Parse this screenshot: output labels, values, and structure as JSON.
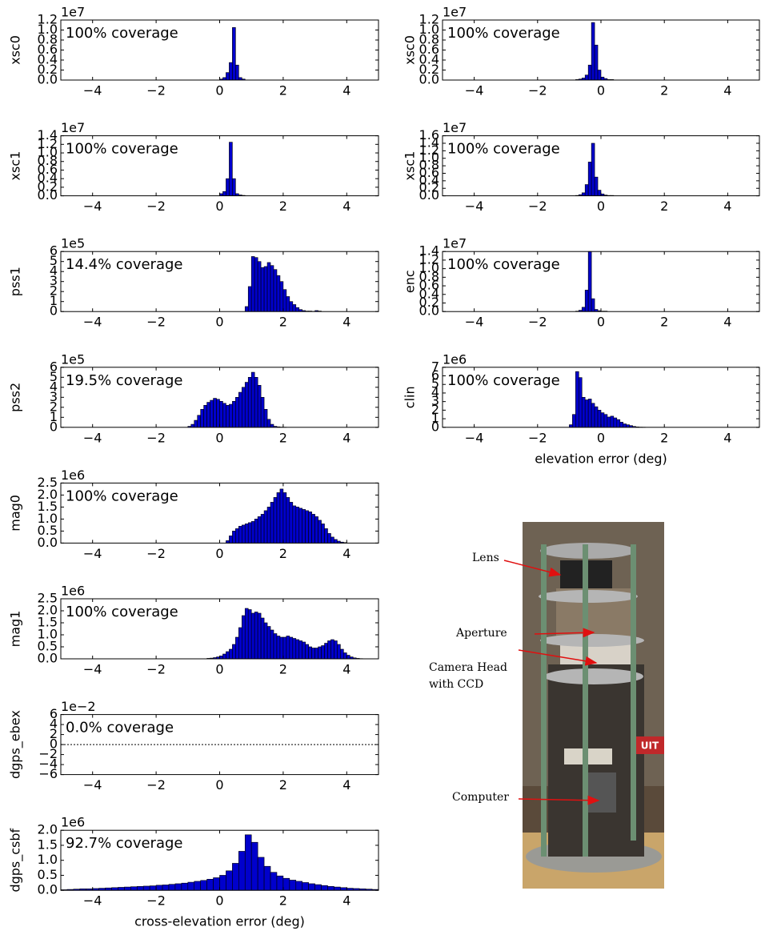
{
  "chart_data": [
    {
      "type": "histogram",
      "ylabel": "xsc0",
      "offset_label": "1e7",
      "annotation": "100% coverage",
      "color": "#0000cc",
      "bins": [
        0.0,
        0.1,
        0.2,
        0.3,
        0.4,
        0.5,
        0.6,
        0.7,
        0.8
      ],
      "counts": [
        0.02,
        0.05,
        0.15,
        0.35,
        1.05,
        0.3,
        0.05,
        0.02
      ],
      "xlim": [
        -5,
        5
      ],
      "xticks": [
        {
          "value": -4,
          "label": "−4"
        },
        {
          "value": -2,
          "label": "−2"
        },
        0,
        2,
        4
      ],
      "ylim": [
        0,
        1.2
      ],
      "yticks": [
        {
          "value": 0,
          "label": "0.0"
        },
        0.2,
        0.4,
        0.6,
        0.8,
        {
          "value": 1,
          "label": "1.0"
        },
        1.2
      ]
    },
    {
      "type": "histogram",
      "ylabel": "xsc1",
      "offset_label": "1e7",
      "annotation": "100% coverage",
      "color": "#0000cc",
      "bins": [
        0.0,
        0.1,
        0.2,
        0.3,
        0.4,
        0.5,
        0.6,
        0.7,
        0.8
      ],
      "counts": [
        0.05,
        0.1,
        0.4,
        1.25,
        0.4,
        0.05,
        0.02,
        0.01
      ],
      "xlim": [
        -5,
        5
      ],
      "xticks": [
        {
          "value": -4,
          "label": "−4"
        },
        {
          "value": -2,
          "label": "−2"
        },
        0,
        2,
        4
      ],
      "ylim": [
        0,
        1.4
      ],
      "yticks": [
        {
          "value": 0,
          "label": "0.0"
        },
        0.2,
        0.4,
        0.6,
        0.8,
        {
          "value": 1,
          "label": "1.0"
        },
        1.2,
        1.4
      ]
    },
    {
      "type": "histogram",
      "ylabel": "pss1",
      "offset_label": "1e5",
      "annotation": "14.4% coverage",
      "color": "#0000cc",
      "bins": [
        0.8,
        0.9,
        1.0,
        1.1,
        1.2,
        1.3,
        1.4,
        1.5,
        1.6,
        1.7,
        1.8,
        1.9,
        2.0,
        2.1,
        2.2,
        2.3,
        2.4,
        2.5,
        2.6,
        2.7,
        2.8,
        2.9,
        3.0,
        3.1,
        3.2
      ],
      "counts": [
        0.5,
        2.5,
        5.5,
        5.4,
        5.0,
        4.4,
        4.5,
        4.9,
        4.6,
        4.2,
        3.6,
        3.0,
        2.2,
        1.5,
        1.0,
        0.7,
        0.4,
        0.2,
        0.1,
        0.05,
        0.05,
        0.02,
        0.1,
        0.05
      ],
      "xlim": [
        -5,
        5
      ],
      "xticks": [
        {
          "value": -4,
          "label": "−4"
        },
        {
          "value": -2,
          "label": "−2"
        },
        0,
        2,
        4
      ],
      "ylim": [
        0,
        6
      ],
      "yticks": [
        0,
        1,
        2,
        3,
        4,
        5,
        6
      ]
    },
    {
      "type": "histogram",
      "ylabel": "pss2",
      "offset_label": "1e5",
      "annotation": "19.5% coverage",
      "color": "#0000cc",
      "bins": [
        -1.0,
        -0.9,
        -0.8,
        -0.7,
        -0.6,
        -0.5,
        -0.4,
        -0.3,
        -0.2,
        -0.1,
        0.0,
        0.1,
        0.2,
        0.3,
        0.4,
        0.5,
        0.6,
        0.7,
        0.8,
        0.9,
        1.0,
        1.1,
        1.2,
        1.3,
        1.4,
        1.5,
        1.6,
        1.7,
        1.8,
        1.9,
        2.0,
        2.1,
        2.2
      ],
      "counts": [
        0.1,
        0.3,
        0.7,
        1.2,
        1.8,
        2.2,
        2.5,
        2.7,
        2.9,
        2.8,
        2.6,
        2.4,
        2.2,
        2.3,
        2.6,
        3.0,
        3.5,
        4.0,
        4.5,
        5.0,
        5.5,
        5.0,
        4.2,
        3.0,
        1.8,
        0.8,
        0.3,
        0.1,
        0.05,
        0.02,
        0.01,
        0.0
      ],
      "xlim": [
        -5,
        5
      ],
      "xticks": [
        {
          "value": -4,
          "label": "−4"
        },
        {
          "value": -2,
          "label": "−2"
        },
        0,
        2,
        4
      ],
      "ylim": [
        0,
        6
      ],
      "yticks": [
        0,
        1,
        2,
        3,
        4,
        5,
        6
      ]
    },
    {
      "type": "histogram",
      "ylabel": "mag0",
      "offset_label": "1e6",
      "annotation": "100% coverage",
      "color": "#0000cc",
      "bins": [
        0.2,
        0.3,
        0.4,
        0.5,
        0.6,
        0.7,
        0.8,
        0.9,
        1.0,
        1.1,
        1.2,
        1.3,
        1.4,
        1.5,
        1.6,
        1.7,
        1.8,
        1.9,
        2.0,
        2.1,
        2.2,
        2.3,
        2.4,
        2.5,
        2.6,
        2.7,
        2.8,
        2.9,
        3.0,
        3.1,
        3.2,
        3.3,
        3.4,
        3.5,
        3.6,
        3.7,
        3.8,
        3.9,
        4.0
      ],
      "counts": [
        0.1,
        0.3,
        0.5,
        0.6,
        0.7,
        0.75,
        0.8,
        0.85,
        0.9,
        1.0,
        1.1,
        1.2,
        1.35,
        1.5,
        1.7,
        1.9,
        2.1,
        2.25,
        2.1,
        1.9,
        1.7,
        1.55,
        1.5,
        1.45,
        1.4,
        1.35,
        1.3,
        1.2,
        1.1,
        0.95,
        0.8,
        0.6,
        0.4,
        0.25,
        0.15,
        0.08,
        0.04,
        0.02
      ],
      "xlim": [
        -5,
        5
      ],
      "xticks": [
        {
          "value": -4,
          "label": "−4"
        },
        {
          "value": -2,
          "label": "−2"
        },
        0,
        2,
        4
      ],
      "ylim": [
        0,
        2.5
      ],
      "yticks": [
        {
          "value": 0,
          "label": "0.0"
        },
        0.5,
        {
          "value": 1,
          "label": "1.0"
        },
        1.5,
        {
          "value": 2,
          "label": "2.0"
        },
        2.5
      ]
    },
    {
      "type": "histogram",
      "ylabel": "mag1",
      "offset_label": "1e6",
      "annotation": "100% coverage",
      "color": "#0000cc",
      "bins": [
        -0.4,
        -0.3,
        -0.2,
        -0.1,
        0.0,
        0.1,
        0.2,
        0.3,
        0.4,
        0.5,
        0.6,
        0.7,
        0.8,
        0.9,
        1.0,
        1.1,
        1.2,
        1.3,
        1.4,
        1.5,
        1.6,
        1.7,
        1.8,
        1.9,
        2.0,
        2.1,
        2.2,
        2.3,
        2.4,
        2.5,
        2.6,
        2.7,
        2.8,
        2.9,
        3.0,
        3.1,
        3.2,
        3.3,
        3.4,
        3.5,
        3.6,
        3.7,
        3.8,
        3.9,
        4.0,
        4.1,
        4.2,
        4.3,
        4.4,
        4.5,
        4.6
      ],
      "counts": [
        0.02,
        0.03,
        0.05,
        0.08,
        0.12,
        0.2,
        0.3,
        0.4,
        0.6,
        0.9,
        1.3,
        1.8,
        2.1,
        2.05,
        1.9,
        1.95,
        1.9,
        1.7,
        1.5,
        1.35,
        1.2,
        1.05,
        0.95,
        0.9,
        0.9,
        0.95,
        0.9,
        0.85,
        0.8,
        0.75,
        0.7,
        0.6,
        0.5,
        0.45,
        0.45,
        0.5,
        0.55,
        0.65,
        0.75,
        0.8,
        0.75,
        0.6,
        0.4,
        0.25,
        0.15,
        0.08,
        0.04,
        0.02,
        0.01,
        0.0
      ],
      "xlim": [
        -5,
        5
      ],
      "xticks": [
        {
          "value": -4,
          "label": "−4"
        },
        {
          "value": -2,
          "label": "−2"
        },
        0,
        2,
        4
      ],
      "ylim": [
        0,
        2.5
      ],
      "yticks": [
        {
          "value": 0,
          "label": "0.0"
        },
        0.5,
        {
          "value": 1,
          "label": "1.0"
        },
        1.5,
        {
          "value": 2,
          "label": "2.0"
        },
        2.5
      ]
    },
    {
      "type": "empty",
      "ylabel": "dgps_ebex",
      "offset_label": "1e−2",
      "annotation": "0.0% coverage",
      "color": "#000000",
      "xlim": [
        -5,
        5
      ],
      "xticks": [
        {
          "value": -4,
          "label": "−4"
        },
        {
          "value": -2,
          "label": "−2"
        },
        0,
        2,
        4
      ],
      "ylim": [
        -6,
        6
      ],
      "yticks": [
        6,
        4,
        2,
        0,
        {
          "value": -2,
          "label": "−2"
        },
        {
          "value": -4,
          "label": "−4"
        },
        {
          "value": -6,
          "label": "−6"
        }
      ]
    },
    {
      "type": "histogram",
      "ylabel": "dgps_csbf",
      "offset_label": "1e6",
      "annotation": "92.7% coverage",
      "color": "#0000cc",
      "xlabel": "cross-elevation error (deg)",
      "bins": [
        -5.0,
        -4.8,
        -4.6,
        -4.4,
        -4.2,
        -4.0,
        -3.8,
        -3.6,
        -3.4,
        -3.2,
        -3.0,
        -2.8,
        -2.6,
        -2.4,
        -2.2,
        -2.0,
        -1.8,
        -1.6,
        -1.4,
        -1.2,
        -1.0,
        -0.8,
        -0.6,
        -0.4,
        -0.2,
        0.0,
        0.2,
        0.4,
        0.6,
        0.8,
        1.0,
        1.2,
        1.4,
        1.6,
        1.8,
        2.0,
        2.2,
        2.4,
        2.6,
        2.8,
        3.0,
        3.2,
        3.4,
        3.6,
        3.8,
        4.0,
        4.2,
        4.4,
        4.6,
        4.8,
        5.0
      ],
      "counts": [
        0.02,
        0.03,
        0.04,
        0.05,
        0.05,
        0.06,
        0.07,
        0.08,
        0.09,
        0.1,
        0.11,
        0.12,
        0.13,
        0.14,
        0.15,
        0.17,
        0.18,
        0.2,
        0.22,
        0.24,
        0.27,
        0.3,
        0.33,
        0.37,
        0.42,
        0.5,
        0.65,
        0.9,
        1.3,
        1.85,
        1.6,
        1.1,
        0.8,
        0.6,
        0.48,
        0.4,
        0.34,
        0.3,
        0.26,
        0.22,
        0.19,
        0.16,
        0.13,
        0.11,
        0.09,
        0.07,
        0.06,
        0.05,
        0.04,
        0.03
      ],
      "xlim": [
        -5,
        5
      ],
      "xticks": [
        {
          "value": -4,
          "label": "−4"
        },
        {
          "value": -2,
          "label": "−2"
        },
        0,
        2,
        4
      ],
      "ylim": [
        0,
        2.0
      ],
      "yticks": [
        {
          "value": 0,
          "label": "0.0"
        },
        0.5,
        {
          "value": 1,
          "label": "1.0"
        },
        1.5,
        {
          "value": 2,
          "label": "2.0"
        }
      ]
    },
    {
      "type": "histogram",
      "ylabel": "xsc0",
      "offset_label": "1e7",
      "annotation": "100% coverage",
      "color": "#0000cc",
      "bins": [
        -0.8,
        -0.7,
        -0.6,
        -0.5,
        -0.4,
        -0.3,
        -0.2,
        -0.1,
        0.0,
        0.1,
        0.2,
        0.3,
        0.4
      ],
      "counts": [
        0.01,
        0.02,
        0.04,
        0.1,
        0.3,
        1.15,
        0.7,
        0.2,
        0.06,
        0.03,
        0.01,
        0.01
      ],
      "xlim": [
        -5,
        5
      ],
      "xticks": [
        {
          "value": -4,
          "label": "−4"
        },
        {
          "value": -2,
          "label": "−2"
        },
        0,
        2,
        4
      ],
      "ylim": [
        0,
        1.2
      ],
      "yticks": [
        {
          "value": 0,
          "label": "0.0"
        },
        0.2,
        0.4,
        0.6,
        0.8,
        {
          "value": 1,
          "label": "1.0"
        },
        1.2
      ]
    },
    {
      "type": "histogram",
      "ylabel": "xsc1",
      "offset_label": "1e7",
      "annotation": "100% coverage",
      "color": "#0000cc",
      "bins": [
        -0.8,
        -0.7,
        -0.6,
        -0.5,
        -0.4,
        -0.3,
        -0.2,
        -0.1,
        0.0,
        0.1,
        0.2,
        0.3,
        0.4
      ],
      "counts": [
        0.01,
        0.03,
        0.08,
        0.3,
        0.9,
        1.4,
        0.5,
        0.15,
        0.05,
        0.02,
        0.01,
        0.01
      ],
      "xlim": [
        -5,
        5
      ],
      "xticks": [
        {
          "value": -4,
          "label": "−4"
        },
        {
          "value": -2,
          "label": "−2"
        },
        0,
        2,
        4
      ],
      "ylim": [
        0,
        1.6
      ],
      "yticks": [
        {
          "value": 0,
          "label": "0.0"
        },
        0.2,
        0.4,
        0.6,
        0.8,
        {
          "value": 1,
          "label": "1.0"
        },
        1.2,
        1.4,
        1.6
      ]
    },
    {
      "type": "histogram",
      "ylabel": "enc",
      "offset_label": "1e7",
      "annotation": "100% coverage",
      "color": "#0000cc",
      "bins": [
        -0.8,
        -0.7,
        -0.6,
        -0.5,
        -0.4,
        -0.3,
        -0.2,
        -0.1,
        0.0,
        0.1,
        0.2
      ],
      "counts": [
        0.01,
        0.03,
        0.1,
        0.5,
        1.4,
        0.3,
        0.05,
        0.02,
        0.01,
        0.01
      ],
      "xlim": [
        -5,
        5
      ],
      "xticks": [
        {
          "value": -4,
          "label": "−4"
        },
        {
          "value": -2,
          "label": "−2"
        },
        0,
        2,
        4
      ],
      "ylim": [
        0,
        1.4
      ],
      "yticks": [
        {
          "value": 0,
          "label": "0.0"
        },
        0.2,
        0.4,
        0.6,
        0.8,
        {
          "value": 1,
          "label": "1.0"
        },
        1.2,
        1.4
      ]
    },
    {
      "type": "histogram",
      "ylabel": "clin",
      "offset_label": "1e6",
      "annotation": "100% coverage",
      "color": "#0000cc",
      "xlabel": "elevation error (deg)",
      "bins": [
        -1.0,
        -0.9,
        -0.8,
        -0.7,
        -0.6,
        -0.5,
        -0.4,
        -0.3,
        -0.2,
        -0.1,
        0.0,
        0.1,
        0.2,
        0.3,
        0.4,
        0.5,
        0.6,
        0.7,
        0.8,
        0.9,
        1.0,
        1.1,
        1.2,
        1.3,
        1.4
      ],
      "counts": [
        0.3,
        1.5,
        6.5,
        5.8,
        3.5,
        3.2,
        3.3,
        2.8,
        2.4,
        2.0,
        1.7,
        1.5,
        1.2,
        1.3,
        1.1,
        0.9,
        0.6,
        0.4,
        0.3,
        0.2,
        0.1,
        0.05,
        0.02,
        0.01
      ],
      "xlim": [
        -5,
        5
      ],
      "xticks": [
        {
          "value": -4,
          "label": "−4"
        },
        {
          "value": -2,
          "label": "−2"
        },
        0,
        2,
        4
      ],
      "ylim": [
        0,
        7
      ],
      "yticks": [
        0,
        1,
        2,
        3,
        4,
        5,
        6,
        7
      ]
    }
  ],
  "photo": {
    "labels": [
      "Lens",
      "Aperture",
      "Camera Head",
      "with CCD",
      "Computer"
    ],
    "sign": "UIT"
  }
}
